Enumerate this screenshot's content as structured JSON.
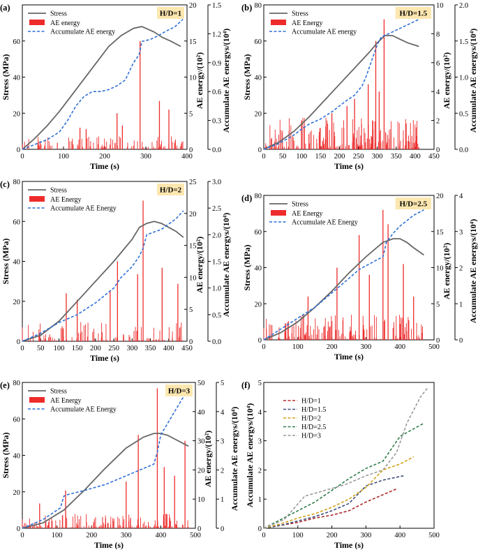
{
  "figure": {
    "panels": [
      "(a)",
      "(b)",
      "(c)",
      "(d)",
      "(e)",
      "(f)"
    ]
  },
  "colors": {
    "stress": "#666666",
    "ae": "#ee2b2b",
    "cum": "#2f6fd6",
    "badge": "#fde7b0",
    "hd1": "#b02a2a",
    "hd15": "#3d4a7a",
    "hd2": "#d4a016",
    "hd25": "#2e7d4a",
    "hd3": "#999999"
  },
  "chart_data": [
    {
      "type": "line+bar",
      "panel": "(a)",
      "badge": "H/D=1",
      "legend": [
        "Stress",
        "AE energy",
        "Accumulate AE energy"
      ],
      "xlabel": "Time (s)",
      "ylabel": "Stress (MPa)",
      "y2label": "AE energy/(10²)",
      "y3label": "Accumulate AE energys/(10⁴)",
      "xlim": [
        0,
        400
      ],
      "xticks": [
        0,
        100,
        200,
        300,
        400
      ],
      "ylim": [
        0,
        80
      ],
      "yticks": [
        0,
        20,
        40,
        60
      ],
      "y2lim": [
        0,
        20
      ],
      "y2ticks": [
        0,
        5,
        10,
        15,
        20
      ],
      "y3lim": [
        0,
        1.5
      ],
      "y3ticks": [
        "0.0",
        "0.3",
        "0.6",
        "0.9",
        "1.2",
        "1.5"
      ],
      "duration": 390,
      "stress": {
        "x": [
          0,
          30,
          60,
          90,
          120,
          150,
          180,
          210,
          240,
          270,
          290,
          300,
          320,
          340,
          360,
          385
        ],
        "y": [
          0,
          6,
          13,
          21,
          30,
          39,
          48,
          57,
          63,
          67,
          68,
          67,
          65,
          62,
          60,
          57
        ]
      },
      "cum": {
        "x": [
          0,
          30,
          60,
          90,
          110,
          130,
          150,
          170,
          190,
          210,
          230,
          250,
          270,
          280,
          285,
          290,
          310,
          330,
          350,
          370,
          390
        ],
        "y": [
          0,
          0.05,
          0.1,
          0.18,
          0.3,
          0.45,
          0.55,
          0.6,
          0.6,
          0.62,
          0.66,
          0.72,
          0.9,
          0.96,
          1.0,
          1.12,
          1.14,
          1.18,
          1.23,
          1.27,
          1.35
        ]
      },
      "ae_peaks": [
        {
          "x": 230,
          "y": 5.0
        },
        {
          "x": 286,
          "y": 15.0
        },
        {
          "x": 333,
          "y": 6.7
        },
        {
          "x": 356,
          "y": 5.5
        },
        {
          "x": 140,
          "y": 3.0
        },
        {
          "x": 155,
          "y": 2.8
        },
        {
          "x": 243,
          "y": 3.3
        }
      ],
      "ae_noise": {
        "count": 150,
        "maxh": 1.8,
        "seed": 11
      }
    },
    {
      "type": "line+bar",
      "panel": "(b)",
      "badge": "H/D=1.5",
      "legend": [
        "Stress",
        "AE Energy",
        "Accumulate AE energy"
      ],
      "xlabel": "Time (s)",
      "ylabel": "Stress (MPa)",
      "y2label": "AE energy/(10²)",
      "y3label": "Accumulate AE energys/(10⁴)",
      "xlim": [
        0,
        450
      ],
      "xticks": [
        0,
        50,
        100,
        150,
        200,
        250,
        300,
        350,
        400,
        450
      ],
      "ylim": [
        0,
        80
      ],
      "yticks": [
        0,
        20,
        40,
        60,
        80
      ],
      "y2lim": [
        0,
        10
      ],
      "y2ticks": [
        0,
        2,
        4,
        6,
        8,
        10
      ],
      "y3lim": [
        0,
        2
      ],
      "y3ticks": [
        "0.0",
        "0.5",
        "1.0",
        "1.5",
        "2.0"
      ],
      "duration": 410,
      "stress": {
        "x": [
          0,
          40,
          80,
          120,
          160,
          200,
          240,
          280,
          300,
          320,
          340,
          360,
          380,
          410
        ],
        "y": [
          0,
          4,
          10,
          18,
          27,
          36,
          45,
          54,
          59,
          63,
          63,
          61,
          59,
          57
        ]
      },
      "cum": {
        "x": [
          0,
          40,
          80,
          100,
          120,
          150,
          180,
          200,
          220,
          240,
          260,
          270,
          280,
          290,
          300,
          310,
          320,
          330,
          350,
          370,
          390,
          410
        ],
        "y": [
          0,
          0.08,
          0.2,
          0.28,
          0.35,
          0.42,
          0.52,
          0.6,
          0.68,
          0.75,
          0.88,
          1.0,
          1.15,
          1.3,
          1.45,
          1.55,
          1.58,
          1.6,
          1.65,
          1.7,
          1.75,
          1.8
        ]
      },
      "ae_peaks": [
        {
          "x": 318,
          "y": 9.0
        },
        {
          "x": 296,
          "y": 7.5
        },
        {
          "x": 276,
          "y": 4.5
        },
        {
          "x": 305,
          "y": 4.0
        },
        {
          "x": 180,
          "y": 2.5
        },
        {
          "x": 240,
          "y": 3.5
        },
        {
          "x": 220,
          "y": 3.0
        },
        {
          "x": 100,
          "y": 2.0
        }
      ],
      "ae_noise": {
        "count": 230,
        "maxh": 2.2,
        "seed": 23
      }
    },
    {
      "type": "line+bar",
      "panel": "(c)",
      "badge": "H/D=2",
      "legend": [
        "Stress",
        "AE Energy",
        "Accumulate AE Energy"
      ],
      "xlabel": "Time (s)",
      "ylabel": "Stress (MPa)",
      "y2label": "AE energy/(10²)",
      "y3label": "Accumulate AE energys/(10⁴)",
      "xlim": [
        0,
        450
      ],
      "xticks": [
        0,
        50,
        100,
        150,
        200,
        250,
        300,
        350,
        400,
        450
      ],
      "ylim": [
        0,
        80
      ],
      "yticks": [
        0,
        20,
        40,
        60,
        80
      ],
      "y2lim": [
        0,
        25
      ],
      "y2ticks": [
        0,
        5,
        10,
        15,
        20,
        25
      ],
      "y3lim": [
        0,
        3
      ],
      "y3ticks": [
        "0.0",
        "0.5",
        "1.0",
        "1.5",
        "2.0",
        "2.5",
        "3.0"
      ],
      "duration": 440,
      "stress": {
        "x": [
          0,
          50,
          100,
          150,
          200,
          250,
          300,
          320,
          340,
          360,
          380,
          400,
          420,
          440
        ],
        "y": [
          0,
          3,
          10,
          20,
          30,
          40,
          51,
          57,
          59,
          60,
          59,
          57,
          55,
          52
        ]
      },
      "cum": {
        "x": [
          0,
          50,
          100,
          150,
          200,
          250,
          270,
          300,
          320,
          330,
          340,
          360,
          380,
          400,
          420,
          440
        ],
        "y": [
          0,
          0.15,
          0.35,
          0.5,
          0.72,
          1.0,
          1.2,
          1.4,
          1.6,
          1.75,
          2.0,
          2.05,
          2.1,
          2.2,
          2.3,
          2.45
        ]
      },
      "ae_peaks": [
        {
          "x": 330,
          "y": 22.0
        },
        {
          "x": 260,
          "y": 12.5
        },
        {
          "x": 120,
          "y": 7.5
        },
        {
          "x": 382,
          "y": 11.5
        },
        {
          "x": 425,
          "y": 9.0
        },
        {
          "x": 315,
          "y": 10.5
        },
        {
          "x": 240,
          "y": 8.0
        },
        {
          "x": 150,
          "y": 6.5
        }
      ],
      "ae_noise": {
        "count": 120,
        "maxh": 3.0,
        "seed": 37
      }
    },
    {
      "type": "line+bar",
      "panel": "(d)",
      "badge": "H/D=2.5",
      "legend": [
        "Stress",
        "AE Energy",
        "Accumulate AE Energy"
      ],
      "xlabel": "Time (s)",
      "ylabel": "Stress (MPa)",
      "y2label": "AE energy/(10²)",
      "y3label": "Accumulate AE energys/(10⁴)",
      "xlim": [
        0,
        500
      ],
      "xticks": [
        0,
        100,
        200,
        300,
        400,
        500
      ],
      "ylim": [
        0,
        80
      ],
      "yticks": [
        0,
        20,
        40,
        60,
        80
      ],
      "y2lim": [
        0,
        20
      ],
      "y2ticks": [
        0,
        5,
        10,
        15,
        20
      ],
      "y3lim": [
        0,
        4
      ],
      "y3ticks": [
        "0",
        "1",
        "2",
        "3",
        "4"
      ],
      "duration": 470,
      "stress": {
        "x": [
          0,
          50,
          100,
          150,
          200,
          250,
          300,
          350,
          380,
          400,
          420,
          440,
          470
        ],
        "y": [
          0,
          4,
          10,
          18,
          27,
          37,
          46,
          54,
          56,
          56,
          54,
          51,
          47
        ]
      },
      "cum": {
        "x": [
          0,
          50,
          100,
          150,
          200,
          250,
          280,
          300,
          330,
          350,
          360,
          380,
          400,
          420,
          440,
          470
        ],
        "y": [
          0,
          0.3,
          0.6,
          0.9,
          1.3,
          1.7,
          1.95,
          2.05,
          2.2,
          2.3,
          2.7,
          2.95,
          3.15,
          3.3,
          3.45,
          3.6
        ]
      },
      "ae_peaks": [
        {
          "x": 350,
          "y": 18.0
        },
        {
          "x": 280,
          "y": 14.5
        },
        {
          "x": 365,
          "y": 16.0
        },
        {
          "x": 410,
          "y": 10.5
        },
        {
          "x": 215,
          "y": 10.0
        },
        {
          "x": 130,
          "y": 6.0
        },
        {
          "x": 440,
          "y": 6.0
        },
        {
          "x": 310,
          "y": 9.0
        }
      ],
      "ae_noise": {
        "count": 200,
        "maxh": 3.5,
        "seed": 51
      }
    },
    {
      "type": "line+bar",
      "panel": "(e)",
      "badge": "H/D=3",
      "legend": [
        "Stress",
        "AE Energy",
        "Accumulate AE Energy"
      ],
      "xlabel": "Time (s)",
      "ylabel": "Stress (MPa)",
      "y2label": "AE energy/(10²)",
      "y3label": "Accumulate AE energys/(10⁴)",
      "xlim": [
        0,
        500
      ],
      "xticks": [
        0,
        100,
        200,
        300,
        400,
        500
      ],
      "ylim": [
        0,
        80
      ],
      "yticks": [
        0,
        20,
        40,
        60,
        80
      ],
      "y2lim": [
        0,
        50
      ],
      "y2ticks": [
        0,
        10,
        20,
        30,
        40,
        50
      ],
      "y3lim": [
        0,
        5
      ],
      "y3ticks": [
        "0",
        "1",
        "2",
        "3",
        "4",
        "5"
      ],
      "duration": 480,
      "stress": {
        "x": [
          0,
          60,
          120,
          180,
          240,
          300,
          350,
          380,
          400,
          420,
          440,
          470,
          480
        ],
        "y": [
          0,
          3,
          10,
          21,
          33,
          44,
          50,
          52,
          52,
          51,
          49,
          46,
          45
        ]
      },
      "cum": {
        "x": [
          0,
          60,
          110,
          120,
          130,
          180,
          240,
          300,
          340,
          380,
          390,
          400,
          420,
          440,
          460,
          480
        ],
        "y": [
          0,
          0.3,
          0.7,
          1.1,
          1.15,
          1.3,
          1.5,
          1.8,
          2.0,
          2.2,
          2.6,
          3.2,
          3.6,
          4.0,
          4.4,
          4.8
        ]
      },
      "ae_peaks": [
        {
          "x": 390,
          "y": 48.0
        },
        {
          "x": 335,
          "y": 32.0
        },
        {
          "x": 470,
          "y": 30.0
        },
        {
          "x": 300,
          "y": 16.0
        },
        {
          "x": 125,
          "y": 13.0
        },
        {
          "x": 410,
          "y": 21.0
        },
        {
          "x": 440,
          "y": 18.0
        },
        {
          "x": 50,
          "y": 8.5
        }
      ],
      "ae_noise": {
        "count": 200,
        "maxh": 5.0,
        "seed": 67
      }
    },
    {
      "type": "line",
      "panel": "(f)",
      "xlabel": "Time (s)",
      "ylabel": "Accumulate AE energys/(10⁴)",
      "xlim": [
        0,
        500
      ],
      "xticks": [
        0,
        100,
        200,
        300,
        400,
        500
      ],
      "ylim": [
        0,
        5
      ],
      "yticks": [
        0,
        1,
        2,
        3,
        4,
        5
      ],
      "series": [
        {
          "name": "H/D=1",
          "color": "#b02a2a",
          "x": [
            0,
            50,
            100,
            150,
            200,
            250,
            300,
            350,
            390
          ],
          "y": [
            0,
            0.1,
            0.2,
            0.35,
            0.45,
            0.6,
            0.9,
            1.15,
            1.35
          ]
        },
        {
          "name": "H/D=1.5",
          "color": "#3d4a7a",
          "x": [
            0,
            50,
            100,
            150,
            200,
            250,
            300,
            350,
            410
          ],
          "y": [
            0,
            0.1,
            0.25,
            0.4,
            0.6,
            0.85,
            1.45,
            1.65,
            1.8
          ]
        },
        {
          "name": "H/D=2",
          "color": "#d4a016",
          "x": [
            0,
            50,
            100,
            150,
            200,
            250,
            300,
            350,
            400,
            440
          ],
          "y": [
            0,
            0.15,
            0.35,
            0.5,
            0.72,
            1.0,
            1.4,
            2.0,
            2.2,
            2.45
          ]
        },
        {
          "name": "H/D=2.5",
          "color": "#2e7d4a",
          "x": [
            0,
            50,
            100,
            150,
            200,
            250,
            300,
            350,
            400,
            470
          ],
          "y": [
            0,
            0.3,
            0.6,
            0.9,
            1.3,
            1.7,
            2.05,
            2.3,
            3.15,
            3.6
          ]
        },
        {
          "name": "H/D=3",
          "color": "#999999",
          "x": [
            0,
            60,
            120,
            180,
            240,
            300,
            350,
            390,
            420,
            460,
            480
          ],
          "y": [
            0,
            0.3,
            1.1,
            1.3,
            1.5,
            1.8,
            2.0,
            2.6,
            3.6,
            4.5,
            4.8
          ]
        }
      ]
    }
  ]
}
